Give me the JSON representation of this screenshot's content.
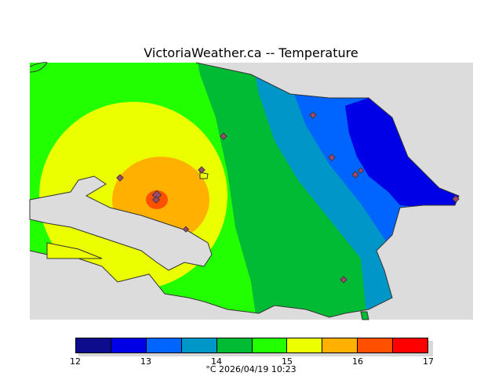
{
  "title": "VictoriaWeather.ca -- Temperature",
  "legend": {
    "colors": [
      "#0c0c8c",
      "#0000e6",
      "#0064ff",
      "#0096c8",
      "#00bb33",
      "#22ff00",
      "#ecff00",
      "#ffb000",
      "#ff5000",
      "#ff0000"
    ],
    "ticks": [
      {
        "label": "12",
        "value": 12
      },
      {
        "label": "13",
        "value": 13
      },
      {
        "label": "14",
        "value": 14
      },
      {
        "label": "15",
        "value": 15
      },
      {
        "label": "16",
        "value": 16
      },
      {
        "label": "17",
        "value": 17
      }
    ],
    "min": 12,
    "max": 17
  },
  "caption": {
    "unit": "°C",
    "timestamp": "2026/04/19 10:23"
  },
  "station_marker_color": "#9a4a6a"
}
